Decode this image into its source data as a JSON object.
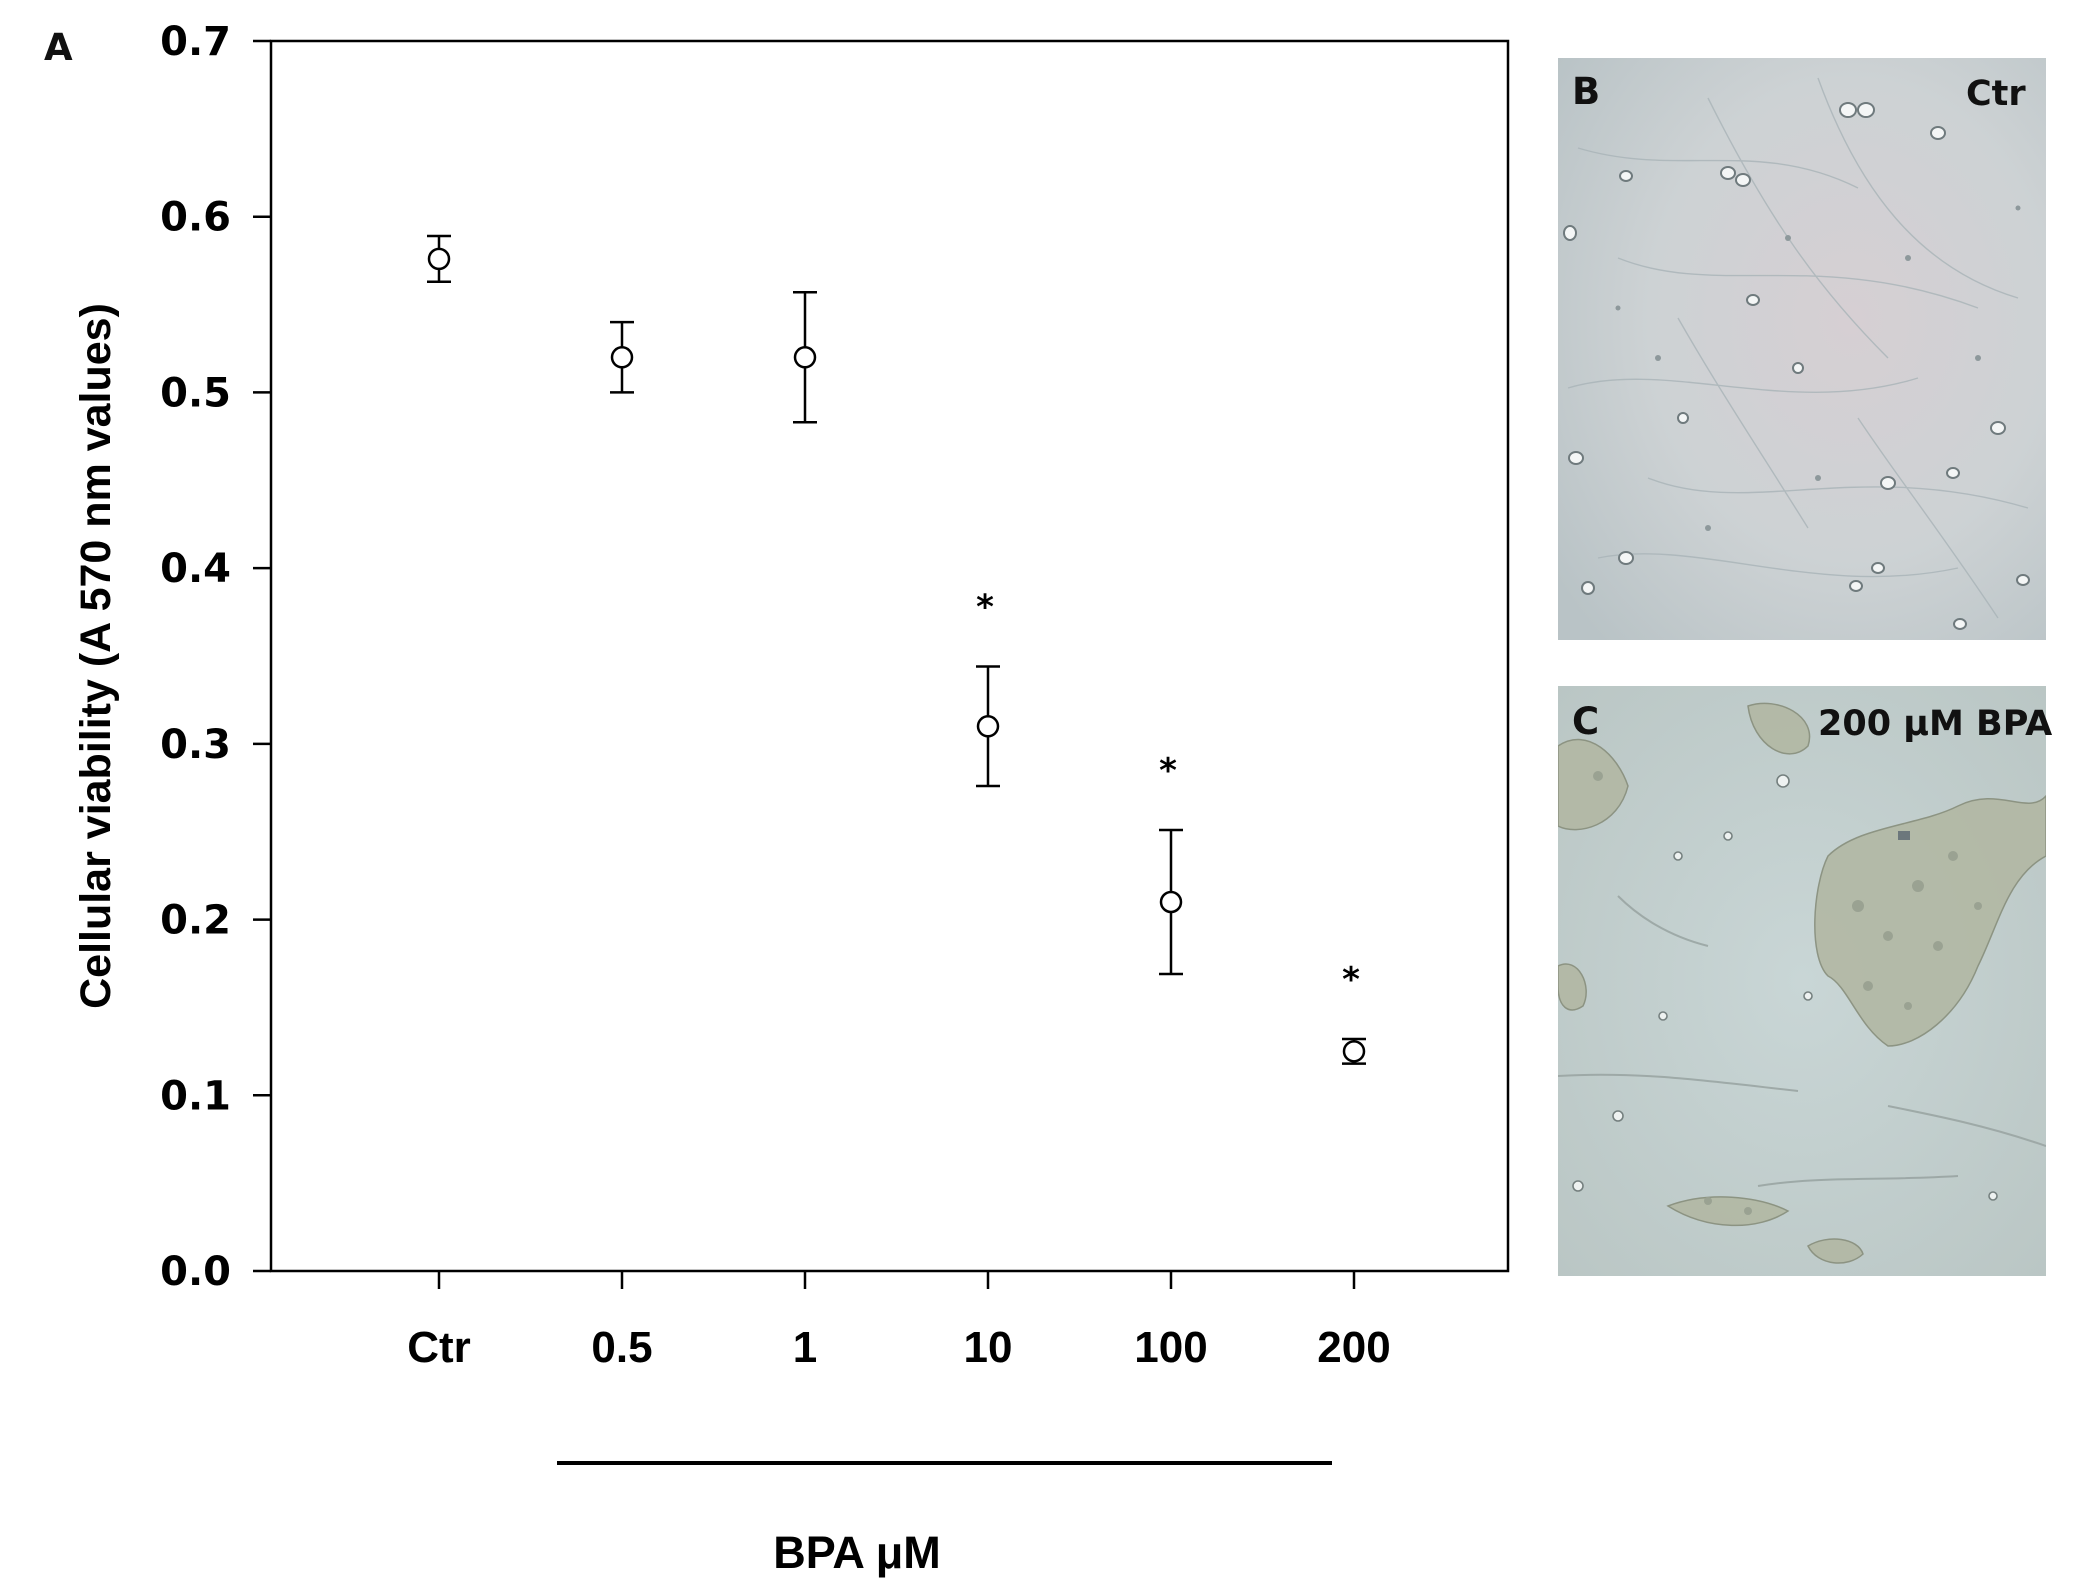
{
  "panels": {
    "a": {
      "label": "A"
    },
    "b": {
      "label": "B",
      "caption": "Ctr"
    },
    "c": {
      "label": "C",
      "caption": "200 μM  BPA"
    }
  },
  "chart_data": {
    "type": "scatter",
    "title": "",
    "xlabel": "BPA μM",
    "ylabel": "Cellular viability (A 570 nm values)",
    "categories": [
      "Ctr",
      "0.5",
      "1",
      "10",
      "100",
      "200"
    ],
    "values": [
      0.576,
      0.52,
      0.52,
      0.31,
      0.21,
      0.125
    ],
    "error": [
      0.013,
      0.02,
      0.037,
      0.034,
      0.041,
      0.007
    ],
    "significant": [
      false,
      false,
      false,
      true,
      true,
      true
    ],
    "significance_marker": "*",
    "ylim": [
      0.0,
      0.7
    ],
    "yticks": [
      "0.0",
      "0.1",
      "0.2",
      "0.3",
      "0.4",
      "0.5",
      "0.6",
      "0.7"
    ],
    "grid": false,
    "marker": "open-circle"
  }
}
